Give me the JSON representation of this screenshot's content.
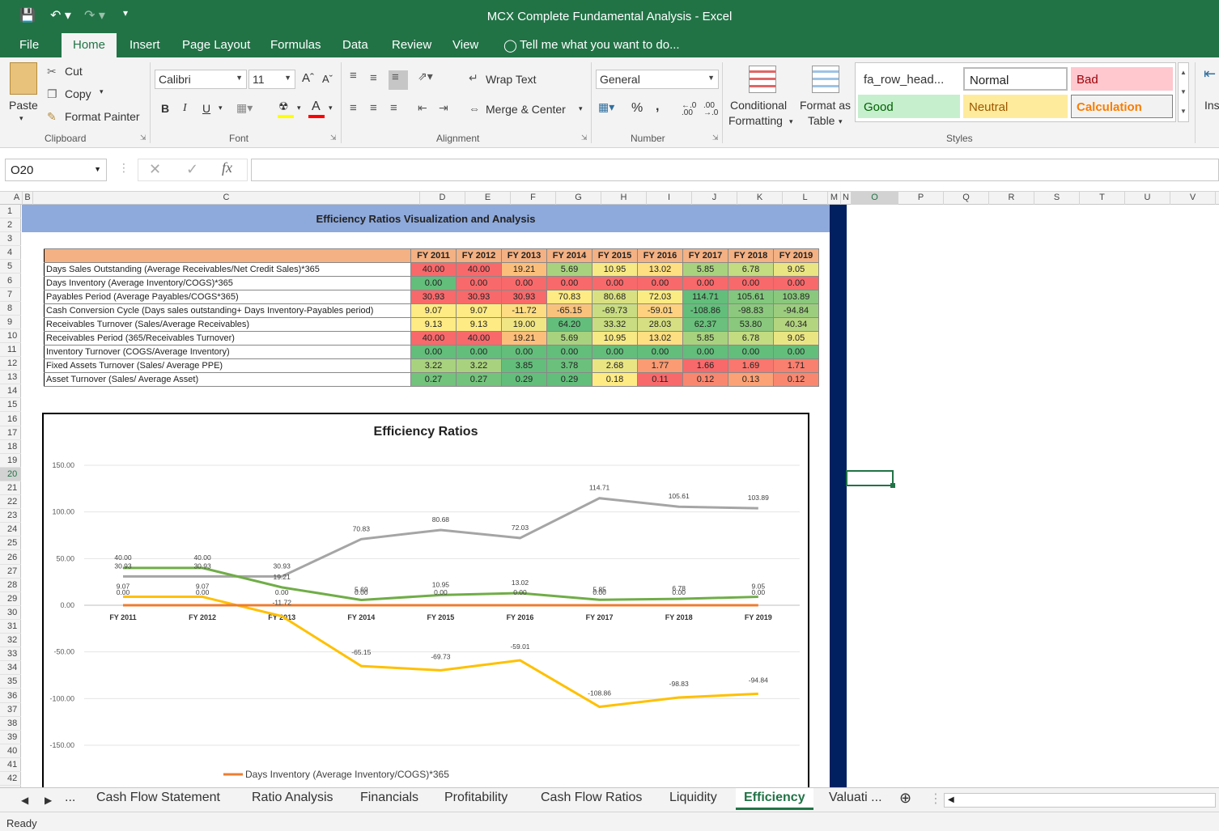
{
  "window": {
    "title": "MCX Complete Fundamental Analysis - Excel"
  },
  "menu": {
    "file": "File",
    "home": "Home",
    "insert": "Insert",
    "page_layout": "Page Layout",
    "formulas": "Formulas",
    "data": "Data",
    "review": "Review",
    "view": "View",
    "tell_me": "Tell me what you want to do..."
  },
  "ribbon": {
    "clipboard": {
      "paste": "Paste",
      "cut": "Cut",
      "copy": "Copy",
      "format_painter": "Format Painter",
      "label": "Clipboard"
    },
    "font": {
      "name": "Calibri",
      "size": "11",
      "label": "Font",
      "bold": "B",
      "italic": "I",
      "underline": "U"
    },
    "alignment": {
      "wrap_text": "Wrap Text",
      "merge_center": "Merge & Center",
      "label": "Alignment"
    },
    "number": {
      "format": "General",
      "label": "Number",
      "percent": "%",
      "comma": ","
    },
    "styles": {
      "conditional_formatting": "Conditional",
      "conditional_formatting_2": "Formatting",
      "format_as_table": "Format as",
      "format_as_table_2": "Table",
      "label": "Styles",
      "cells": [
        "fa_row_head...",
        "Normal",
        "Bad",
        "Good",
        "Neutral",
        "Calculation"
      ]
    },
    "insert": "Ins"
  },
  "formula_bar": {
    "name_box": "O20",
    "formula": ""
  },
  "columns": [
    "A",
    "B",
    "C",
    "D",
    "E",
    "F",
    "G",
    "H",
    "I",
    "J",
    "K",
    "L",
    "M",
    "N",
    "O",
    "P",
    "Q",
    "R",
    "S",
    "T",
    "U",
    "V"
  ],
  "rows": [
    "1",
    "2",
    "3",
    "4",
    "5",
    "6",
    "7",
    "8",
    "9",
    "10",
    "11",
    "12",
    "13",
    "14",
    "15",
    "16",
    "17",
    "18",
    "19",
    "20",
    "21",
    "22",
    "23",
    "24",
    "25",
    "26",
    "27",
    "28",
    "29",
    "30",
    "31",
    "32",
    "33",
    "34",
    "35",
    "36",
    "37",
    "38",
    "39",
    "40",
    "41",
    "42"
  ],
  "sheet": {
    "banner": "Efficiency Ratios Visualization and Analysis",
    "years": [
      "FY 2011",
      "FY 2012",
      "FY 2013",
      "FY 2014",
      "FY 2015",
      "FY 2016",
      "FY 2017",
      "FY 2018",
      "FY 2019"
    ],
    "table_rows": [
      {
        "label": "Days Sales Outstanding (Average Receivables/Net Credit Sales)*365",
        "values": [
          "40.00",
          "40.00",
          "19.21",
          "5.69",
          "10.95",
          "13.02",
          "5.85",
          "6.78",
          "9.05"
        ],
        "colors": [
          "#f8696b",
          "#f8696b",
          "#fcbf7b",
          "#a9d27f",
          "#f7e984",
          "#fedf81",
          "#a9d27f",
          "#c3db81",
          "#eae583"
        ]
      },
      {
        "label": "Days Inventory  (Average Inventory/COGS)*365",
        "values": [
          "0.00",
          "0.00",
          "0.00",
          "0.00",
          "0.00",
          "0.00",
          "0.00",
          "0.00",
          "0.00"
        ],
        "colors": [
          "#63be7b",
          "#f8696b",
          "#f8696b",
          "#f8696b",
          "#f8696b",
          "#f8696b",
          "#f8696b",
          "#f8696b",
          "#f8696b"
        ]
      },
      {
        "label": "Payables Period (Average Payables/COGS*365)",
        "values": [
          "30.93",
          "30.93",
          "30.93",
          "70.83",
          "80.68",
          "72.03",
          "114.71",
          "105.61",
          "103.89"
        ],
        "colors": [
          "#f8696b",
          "#f8696b",
          "#f8696b",
          "#ffeb84",
          "#d9e082",
          "#fbeb83",
          "#63be7b",
          "#82c77d",
          "#8ac87d"
        ]
      },
      {
        "label": "Cash Conversion Cycle (Days sales outstanding+ Days Inventory-Payables period)",
        "values": [
          "9.07",
          "9.07",
          "-11.72",
          "-65.15",
          "-69.73",
          "-59.01",
          "-108.86",
          "-98.83",
          "-94.84"
        ],
        "colors": [
          "#ffeb84",
          "#ffeb84",
          "#fedc81",
          "#f9c27c",
          "#c9dc81",
          "#fdd17f",
          "#63be7b",
          "#8cc97e",
          "#9ccd7e"
        ]
      },
      {
        "label": "Receivables Turnover (Sales/Average Receivables)",
        "values": [
          "9.13",
          "9.13",
          "19.00",
          "64.20",
          "33.32",
          "28.03",
          "62.37",
          "53.80",
          "40.34"
        ],
        "colors": [
          "#ffeb84",
          "#ffeb84",
          "#f1e684",
          "#63be7b",
          "#c9dc81",
          "#d6df82",
          "#6ac07c",
          "#8ac87d",
          "#b4d580"
        ]
      },
      {
        "label": "Receivables Period (365/Receivables Turnover)",
        "values": [
          "40.00",
          "40.00",
          "19.21",
          "5.69",
          "10.95",
          "13.02",
          "5.85",
          "6.78",
          "9.05"
        ],
        "colors": [
          "#f8696b",
          "#f8696b",
          "#fcbf7b",
          "#a9d27f",
          "#f7e984",
          "#fedf81",
          "#a9d27f",
          "#c3db81",
          "#eae583"
        ]
      },
      {
        "label": "Inventory Turnover (COGS/Average Inventory)",
        "values": [
          "0.00",
          "0.00",
          "0.00",
          "0.00",
          "0.00",
          "0.00",
          "0.00",
          "0.00",
          "0.00"
        ],
        "colors": [
          "#63be7b",
          "#63be7b",
          "#63be7b",
          "#63be7b",
          "#63be7b",
          "#63be7b",
          "#63be7b",
          "#63be7b",
          "#63be7b"
        ]
      },
      {
        "label": "Fixed Assets Turnover (Sales/ Average PPE)",
        "values": [
          "3.22",
          "3.22",
          "3.85",
          "3.78",
          "2.68",
          "1.77",
          "1.66",
          "1.69",
          "1.71"
        ],
        "colors": [
          "#a9d27f",
          "#a9d27f",
          "#63be7b",
          "#6bc07c",
          "#e9e583",
          "#fa9b73",
          "#f8696b",
          "#f9776e",
          "#f97f6f"
        ]
      },
      {
        "label": "Asset Turnover (Sales/ Average Asset)",
        "values": [
          "0.27",
          "0.27",
          "0.29",
          "0.29",
          "0.18",
          "0.11",
          "0.12",
          "0.13",
          "0.12"
        ],
        "colors": [
          "#73c37c",
          "#73c37c",
          "#63be7b",
          "#63be7b",
          "#ffeb84",
          "#f8696b",
          "#f98770",
          "#fba276",
          "#f98770"
        ]
      }
    ]
  },
  "chart_data": {
    "type": "line",
    "title": "Efficiency Ratios",
    "categories": [
      "FY 2011",
      "FY 2012",
      "FY 2013",
      "FY 2014",
      "FY 2015",
      "FY 2016",
      "FY 2017",
      "FY 2018",
      "FY 2019"
    ],
    "ylim": [
      -150,
      150
    ],
    "yticks": [
      "150.00",
      "100.00",
      "50.00",
      "0.00",
      "-50.00",
      "-100.00",
      "-150.00"
    ],
    "grid": true,
    "legend_position": "bottom",
    "series": [
      {
        "name": "",
        "color": "#a5a5a5",
        "values": [
          30.93,
          30.93,
          30.93,
          70.83,
          80.68,
          72.03,
          114.71,
          105.61,
          103.89
        ],
        "labels": [
          "30.93",
          "30.93",
          "30.93",
          "70.83",
          "80.68",
          "72.03",
          "114.71",
          "105.61",
          "103.89"
        ]
      },
      {
        "name": "",
        "color": "#70ad47",
        "values": [
          40.0,
          40.0,
          19.21,
          5.69,
          10.95,
          13.02,
          5.85,
          6.78,
          9.05
        ],
        "labels": [
          "40.00",
          "40.00",
          "19.21",
          "5.69",
          "10.95",
          "13.02",
          "5.85",
          "6.78",
          "9.05"
        ]
      },
      {
        "name": "",
        "color": "#ffc000",
        "values": [
          9.07,
          9.07,
          -11.72,
          -65.15,
          -69.73,
          -59.01,
          -108.86,
          -98.83,
          -94.84
        ],
        "labels": [
          "9.07",
          "9.07",
          "-11.72",
          "-65.15",
          "-69.73",
          "-59.01",
          "-108.86",
          "-98.83",
          "-94.84"
        ]
      },
      {
        "name": "Days Inventory  (Average Inventory/COGS)*365",
        "color": "#ed7d31",
        "values": [
          0,
          0,
          0,
          0,
          0,
          0,
          0,
          0,
          0
        ],
        "labels": [
          "0.00",
          "0.00",
          "0.00",
          "0.00",
          "0.00",
          "0.00",
          "0.00",
          "0.00",
          "0.00"
        ]
      }
    ]
  },
  "tabs": {
    "ellipsis": "...",
    "items": [
      "Cash Flow Statement",
      "Ratio Analysis",
      "Financials",
      "Profitability",
      "Cash Flow Ratios",
      "Liquidity",
      "Efficiency",
      "Valuati ..."
    ]
  },
  "status": {
    "text": "Ready"
  }
}
